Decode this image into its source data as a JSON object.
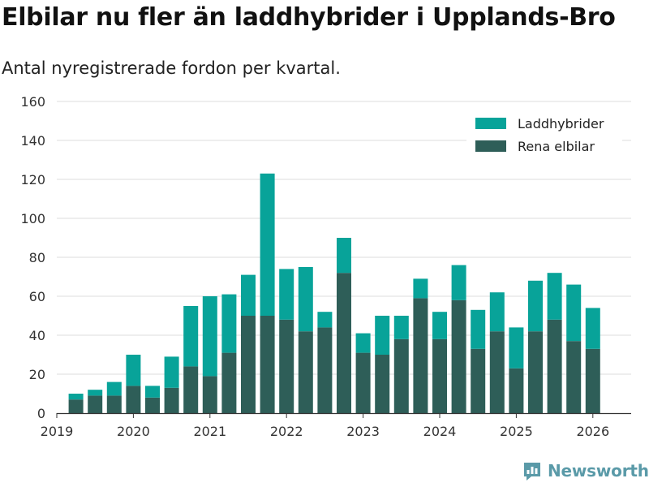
{
  "header": {
    "title": "Elbilar nu fler än laddhybrider i Upplands-Bro",
    "subtitle": "Antal nyregistrerade fordon per kvartal."
  },
  "brand": {
    "name": "Newsworthy",
    "color": "#5a9aa8"
  },
  "chart_data": {
    "type": "bar",
    "stacked": true,
    "title": "Elbilar nu fler än laddhybrider i Upplands-Bro",
    "subtitle": "Antal nyregistrerade fordon per kvartal.",
    "xlabel": "",
    "ylabel": "",
    "ylim": [
      0,
      160
    ],
    "yticks": [
      0,
      20,
      40,
      60,
      80,
      100,
      120,
      140,
      160
    ],
    "xlim": [
      2019,
      2026.5
    ],
    "xticks": [
      2019,
      2020,
      2021,
      2022,
      2023,
      2024,
      2025,
      2026
    ],
    "xtick_labels": [
      "2019",
      "2020",
      "2021",
      "2022",
      "2023",
      "2024",
      "2025",
      "2026"
    ],
    "grid": true,
    "legend_position": "top-right",
    "x": [
      2019.25,
      2019.5,
      2019.75,
      2020.0,
      2020.25,
      2020.5,
      2020.75,
      2021.0,
      2021.25,
      2021.5,
      2021.75,
      2022.0,
      2022.25,
      2022.5,
      2022.75,
      2023.0,
      2023.25,
      2023.5,
      2023.75,
      2024.0,
      2024.25,
      2024.5,
      2024.75,
      2025.0,
      2025.25,
      2025.5,
      2025.75,
      2026.0
    ],
    "series": [
      {
        "name": "Rena elbilar",
        "color": "#2e5e58",
        "values": [
          7,
          9,
          9,
          14,
          8,
          13,
          24,
          19,
          31,
          50,
          50,
          48,
          42,
          44,
          72,
          31,
          30,
          38,
          59,
          38,
          58,
          33,
          42,
          23,
          42,
          48,
          37,
          33
        ]
      },
      {
        "name": "Laddhybrider",
        "color": "#08a399",
        "values": [
          3,
          3,
          7,
          16,
          6,
          16,
          31,
          41,
          30,
          21,
          73,
          26,
          33,
          8,
          18,
          10,
          20,
          12,
          10,
          14,
          18,
          20,
          20,
          21,
          26,
          24,
          29,
          21
        ]
      }
    ],
    "legend": [
      {
        "name": "Laddhybrider",
        "color": "#08a399"
      },
      {
        "name": "Rena elbilar",
        "color": "#2e5e58"
      }
    ]
  }
}
